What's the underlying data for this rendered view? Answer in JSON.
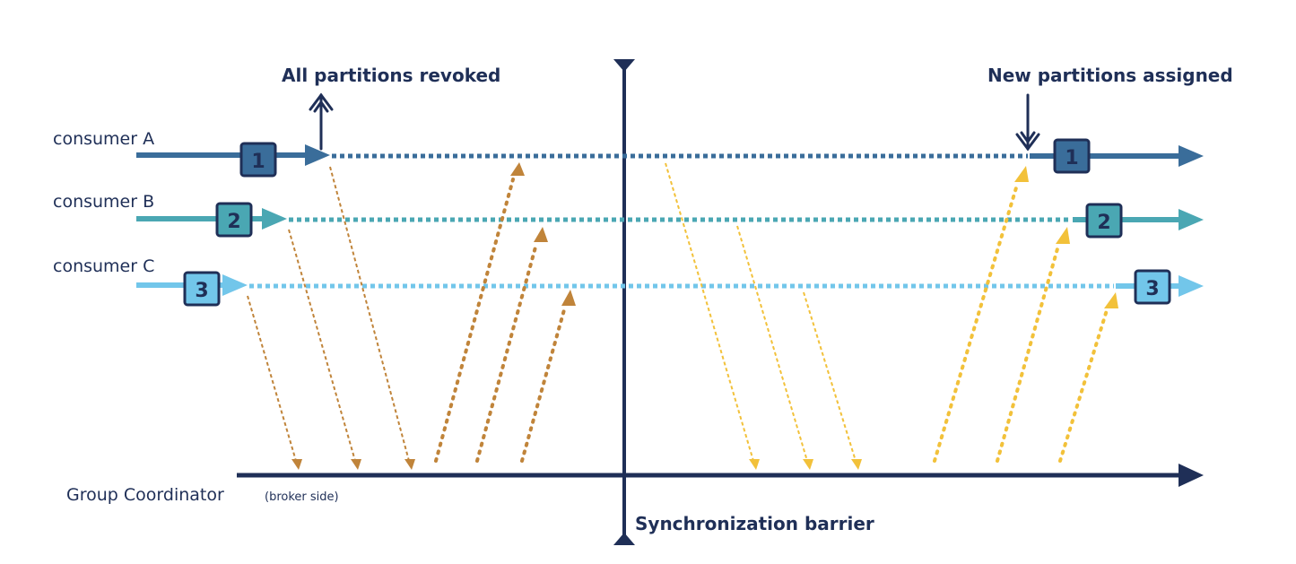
{
  "labels": {
    "consumer_a": "consumer A",
    "consumer_b": "consumer B",
    "consumer_c": "consumer C",
    "revoked": "All partitions revoked",
    "assigned": "New partitions assigned",
    "coordinator": "Group Coordinator",
    "coordinator_note": "(broker side)",
    "barrier": "Synchronization barrier"
  },
  "partitions": {
    "a": "1",
    "b": "2",
    "c": "3"
  },
  "colors": {
    "navy": "#1f2f57",
    "consumer_a": "#3a6d9a",
    "consumer_b": "#4aa7b3",
    "consumer_c": "#72c6ea",
    "box_a": "#3a6d9a",
    "box_b": "#4aa7b3",
    "box_c": "#72c6ea",
    "rebalance_msgs": "#c0843a",
    "sync_msgs": "#f2c13a"
  },
  "icons": {
    "up_arrow": "arrow-up-icon",
    "down_arrow": "arrow-down-icon"
  }
}
